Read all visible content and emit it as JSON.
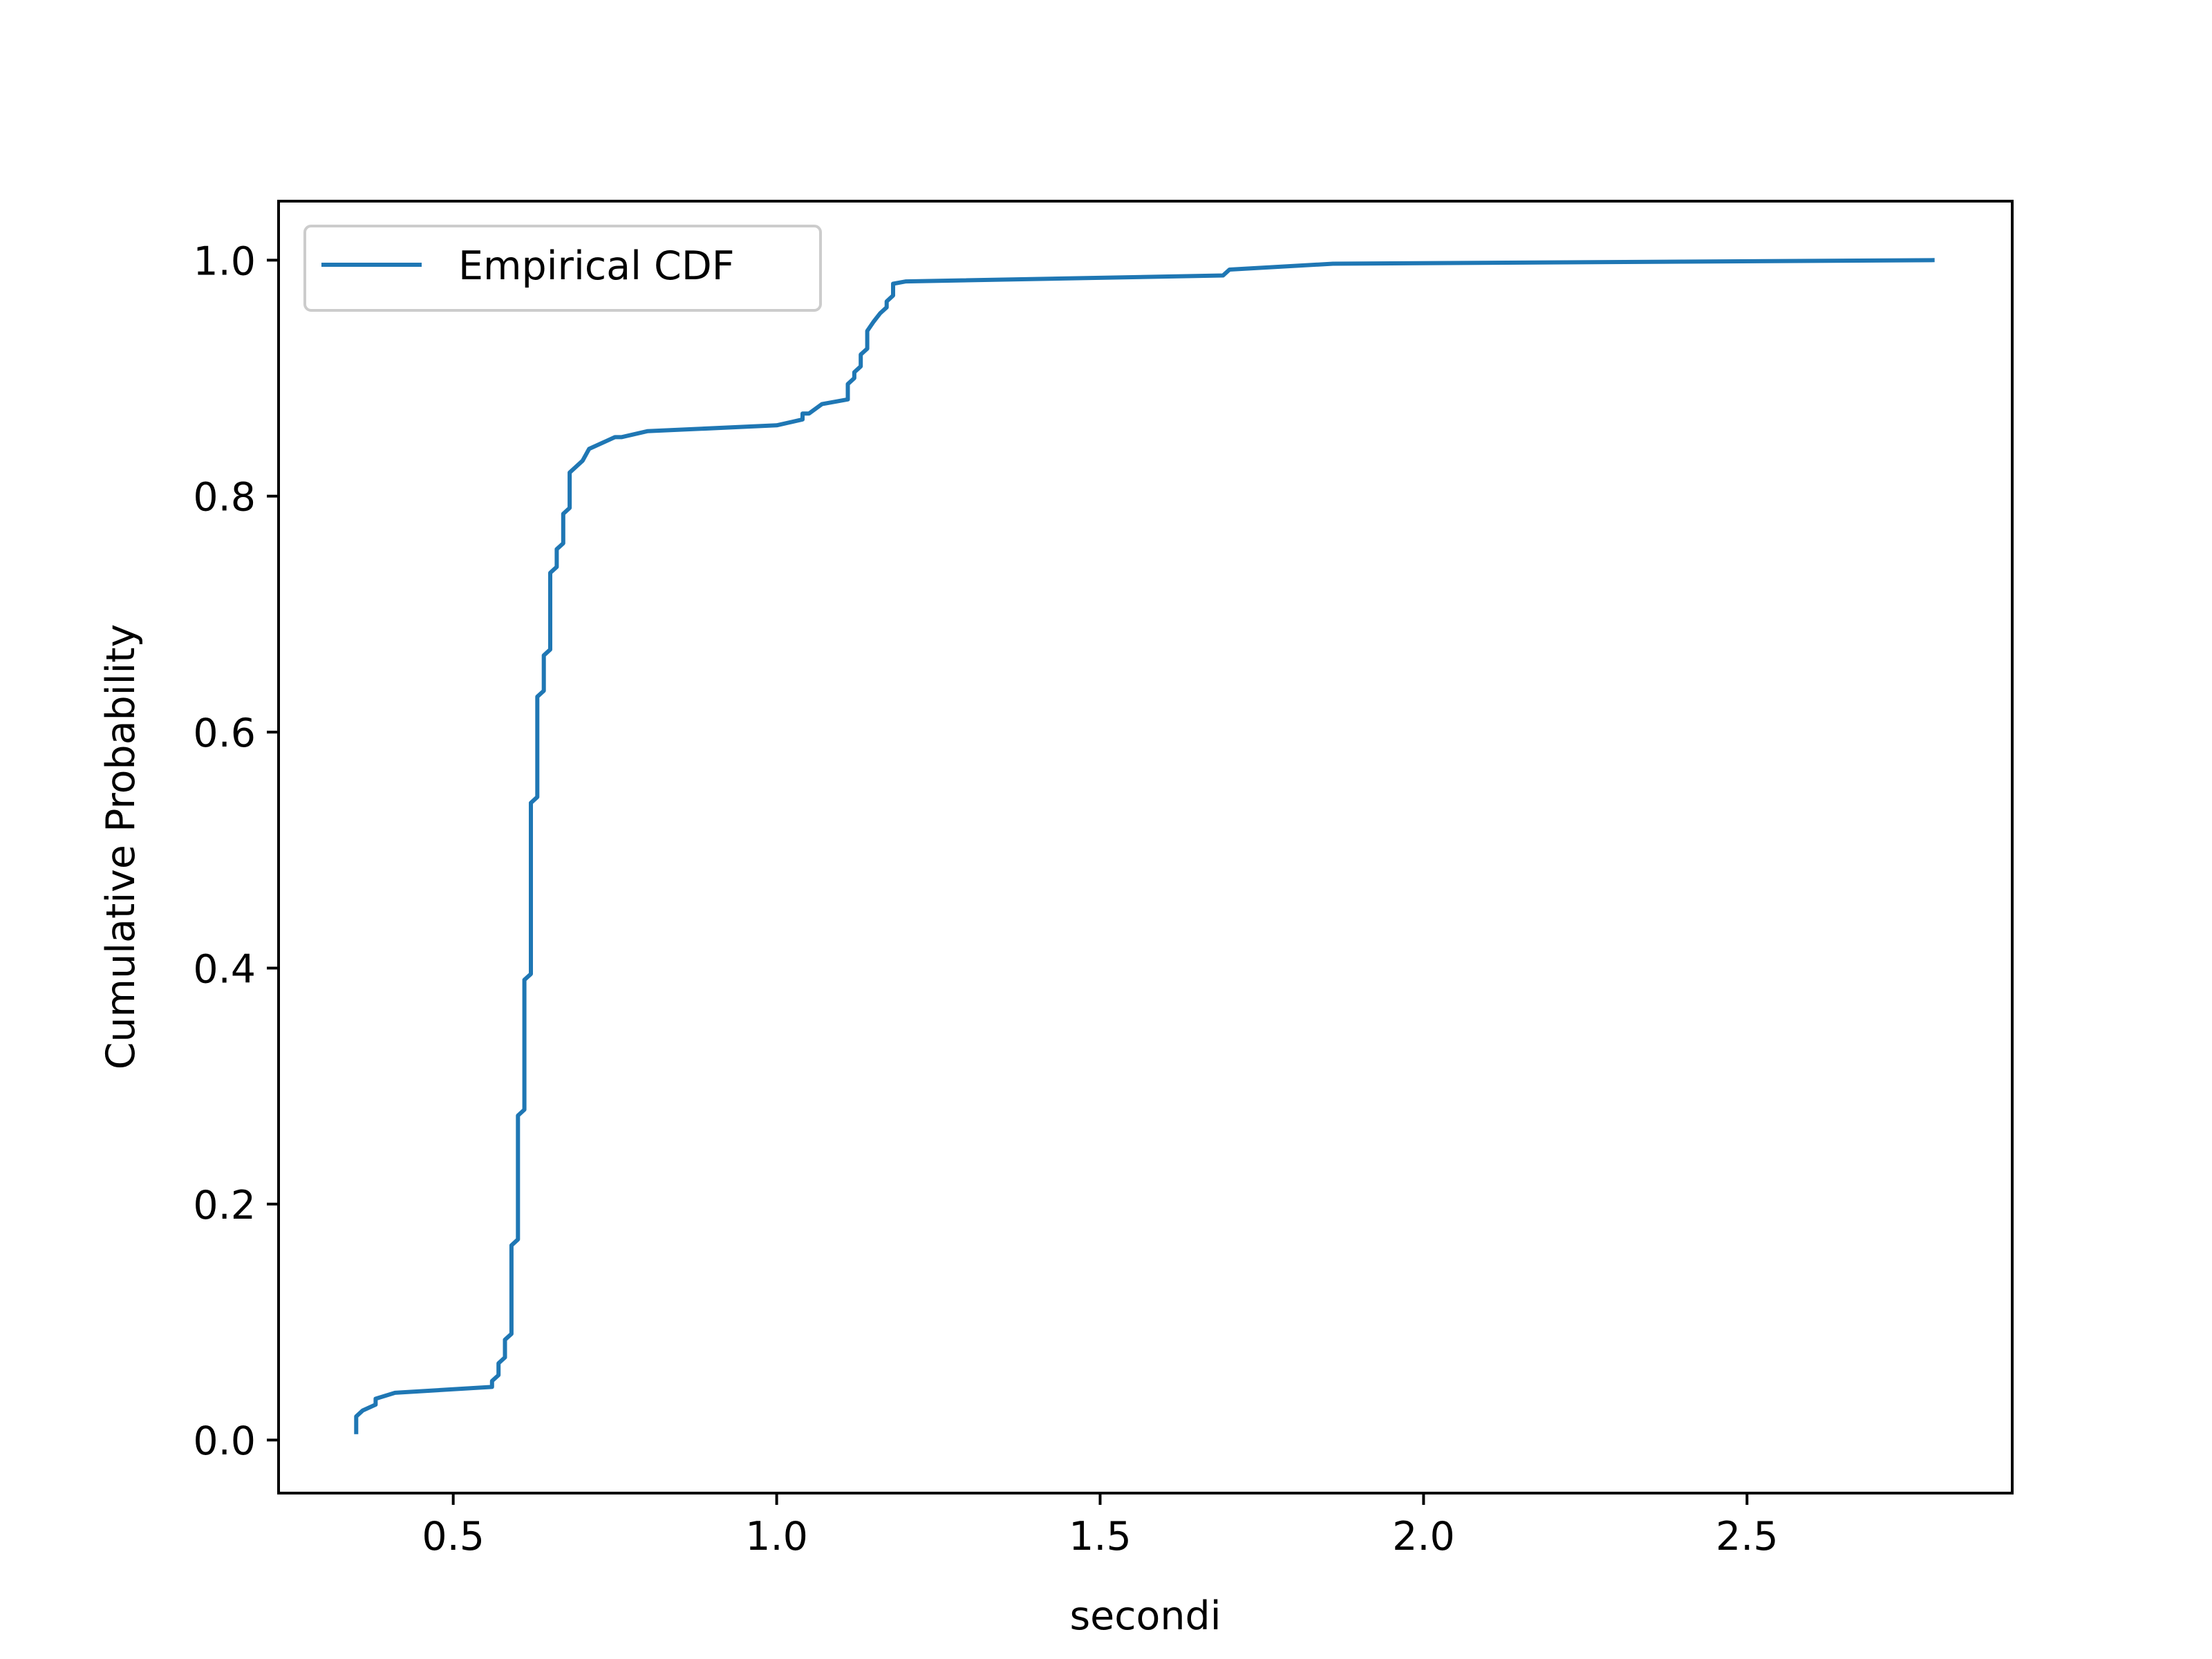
{
  "chart_data": {
    "type": "line",
    "title": "",
    "xlabel": "secondi",
    "ylabel": "Cumulative Probability",
    "xlim": [
      0.23,
      2.91
    ],
    "ylim": [
      -0.045,
      1.05
    ],
    "xticks": [
      0.5,
      1.0,
      1.5,
      2.0,
      2.5
    ],
    "xtick_labels": [
      "0.5",
      "1.0",
      "1.5",
      "2.0",
      "2.5"
    ],
    "yticks": [
      0.0,
      0.2,
      0.4,
      0.6,
      0.8,
      1.0
    ],
    "ytick_labels": [
      "0.0",
      "0.2",
      "0.4",
      "0.6",
      "0.8",
      "1.0"
    ],
    "grid": false,
    "legend": {
      "position": "top-left",
      "entries": [
        "Empirical CDF"
      ]
    },
    "colors": {
      "series": "#1f77b4",
      "axes": "#000000",
      "legend_border": "#cccccc"
    },
    "series": [
      {
        "name": "Empirical CDF",
        "x": [
          0.35,
          0.35,
          0.36,
          0.38,
          0.38,
          0.41,
          0.56,
          0.56,
          0.57,
          0.57,
          0.58,
          0.58,
          0.59,
          0.59,
          0.6,
          0.6,
          0.61,
          0.61,
          0.62,
          0.62,
          0.63,
          0.63,
          0.64,
          0.64,
          0.65,
          0.65,
          0.66,
          0.66,
          0.67,
          0.67,
          0.68,
          0.68,
          0.7,
          0.71,
          0.73,
          0.75,
          0.76,
          0.8,
          1.0,
          1.04,
          1.04,
          1.05,
          1.07,
          1.11,
          1.11,
          1.12,
          1.12,
          1.13,
          1.13,
          1.14,
          1.14,
          1.15,
          1.16,
          1.17,
          1.17,
          1.18,
          1.18,
          1.2,
          1.69,
          1.7,
          1.86,
          2.79
        ],
        "y": [
          0.005,
          0.02,
          0.025,
          0.03,
          0.035,
          0.04,
          0.045,
          0.05,
          0.055,
          0.065,
          0.07,
          0.085,
          0.09,
          0.165,
          0.17,
          0.275,
          0.28,
          0.39,
          0.395,
          0.54,
          0.545,
          0.63,
          0.635,
          0.665,
          0.67,
          0.735,
          0.74,
          0.755,
          0.76,
          0.785,
          0.79,
          0.82,
          0.83,
          0.84,
          0.845,
          0.85,
          0.85,
          0.855,
          0.86,
          0.865,
          0.87,
          0.87,
          0.878,
          0.882,
          0.895,
          0.9,
          0.905,
          0.91,
          0.92,
          0.925,
          0.94,
          0.948,
          0.955,
          0.96,
          0.965,
          0.97,
          0.98,
          0.982,
          0.987,
          0.992,
          0.997,
          1.0
        ]
      }
    ]
  }
}
